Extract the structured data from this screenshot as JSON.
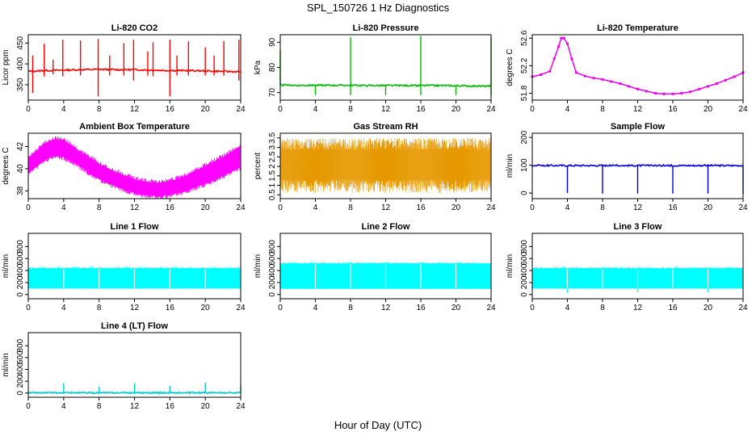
{
  "figure": {
    "title": "SPL_150726  1 Hz Diagnostics",
    "xlabel": "Hour of Day (UTC)"
  },
  "chart_data": [
    {
      "id": "co2",
      "type": "line",
      "title": "Li-820 CO2",
      "ylabel": "Licor ppm",
      "color": "#ff0000",
      "xlim": [
        0,
        24
      ],
      "ylim": [
        313,
        470
      ],
      "xticks": [
        0,
        4,
        8,
        12,
        16,
        20,
        24
      ],
      "yticks": [
        350,
        400,
        450
      ],
      "series": [
        {
          "x": [
            0,
            2,
            4,
            6,
            8,
            10,
            12,
            14,
            16,
            18,
            20,
            22,
            24
          ],
          "y": [
            382,
            384,
            385,
            386,
            387,
            386,
            386,
            385,
            384,
            384,
            383,
            382,
            381
          ]
        }
      ],
      "spikes": [
        {
          "x": 0.5,
          "top": 420,
          "bottom": 330
        },
        {
          "x": 1.8,
          "top": 448,
          "bottom": 370
        },
        {
          "x": 2.8,
          "top": 410,
          "bottom": 375
        },
        {
          "x": 3.9,
          "top": 458,
          "bottom": 370
        },
        {
          "x": 5.9,
          "top": 456,
          "bottom": 372
        },
        {
          "x": 7.9,
          "top": 460,
          "bottom": 322
        },
        {
          "x": 9.2,
          "top": 420,
          "bottom": 372
        },
        {
          "x": 10.8,
          "top": 450,
          "bottom": 372
        },
        {
          "x": 11.9,
          "top": 458,
          "bottom": 360
        },
        {
          "x": 13.5,
          "top": 430,
          "bottom": 372
        },
        {
          "x": 14.1,
          "top": 452,
          "bottom": 370
        },
        {
          "x": 16.0,
          "top": 458,
          "bottom": 322
        },
        {
          "x": 16.8,
          "top": 420,
          "bottom": 372
        },
        {
          "x": 18.1,
          "top": 454,
          "bottom": 372
        },
        {
          "x": 20.0,
          "top": 440,
          "bottom": 372
        },
        {
          "x": 21.0,
          "top": 420,
          "bottom": 372
        },
        {
          "x": 22.1,
          "top": 455,
          "bottom": 372
        },
        {
          "x": 23.8,
          "top": 458,
          "bottom": 360
        }
      ]
    },
    {
      "id": "pressure",
      "type": "line",
      "title": "Li-820 Pressure",
      "ylabel": "kPa",
      "color": "#00bb00",
      "xlim": [
        0,
        24
      ],
      "ylim": [
        67,
        93
      ],
      "xticks": [
        0,
        4,
        8,
        12,
        16,
        20,
        24
      ],
      "yticks": [
        70,
        80,
        90
      ],
      "series": [
        {
          "x": [
            0,
            2,
            4,
            6,
            8,
            10,
            12,
            14,
            16,
            18,
            20,
            22,
            24
          ],
          "y": [
            73.0,
            72.9,
            72.9,
            72.9,
            72.9,
            72.8,
            72.8,
            72.8,
            72.8,
            72.8,
            72.7,
            72.6,
            72.5
          ]
        }
      ],
      "spikes": [
        {
          "x": 0.0,
          "top": 87,
          "bottom": 73
        },
        {
          "x": 4.0,
          "top": 73,
          "bottom": 69
        },
        {
          "x": 8.0,
          "top": 92,
          "bottom": 69
        },
        {
          "x": 12.0,
          "top": 73,
          "bottom": 69
        },
        {
          "x": 16.0,
          "top": 92.5,
          "bottom": 69
        },
        {
          "x": 20.0,
          "top": 73,
          "bottom": 69
        },
        {
          "x": 24.0,
          "top": 92,
          "bottom": 69
        }
      ]
    },
    {
      "id": "licor_temp",
      "type": "line",
      "title": "Li-820 Temperature",
      "ylabel": "degrees C",
      "color": "#ee00ee",
      "xlim": [
        0,
        24
      ],
      "ylim": [
        51.7,
        52.65
      ],
      "xticks": [
        0,
        4,
        8,
        12,
        16,
        20,
        24
      ],
      "yticks": [
        51.8,
        52.2,
        52.6
      ],
      "series": [
        {
          "x": [
            0,
            1,
            2,
            2.5,
            3,
            3.3,
            3.6,
            4,
            4.5,
            5,
            6,
            7,
            8,
            9,
            10,
            11,
            12,
            13,
            14,
            15,
            16,
            17,
            18,
            19,
            20,
            21,
            22,
            23,
            24
          ],
          "y": [
            52.04,
            52.07,
            52.12,
            52.3,
            52.48,
            52.6,
            52.6,
            52.52,
            52.3,
            52.1,
            52.05,
            52.02,
            52.0,
            51.97,
            51.94,
            51.9,
            51.86,
            51.83,
            51.8,
            51.79,
            51.79,
            51.8,
            51.82,
            51.86,
            51.9,
            51.94,
            51.99,
            52.04,
            52.1
          ]
        }
      ]
    },
    {
      "id": "box_temp",
      "type": "area",
      "title": "Ambient Box Temperature",
      "ylabel": "degrees C",
      "color": "#ff00ff",
      "xlim": [
        0,
        24
      ],
      "ylim": [
        37.3,
        43.2
      ],
      "xticks": [
        0,
        4,
        8,
        12,
        16,
        20,
        24
      ],
      "yticks": [
        38,
        40,
        42
      ],
      "series": [
        {
          "x": [
            0,
            1,
            2,
            3,
            4,
            5,
            6,
            7,
            8,
            9,
            10,
            11,
            12,
            13,
            14,
            15,
            16,
            17,
            18,
            19,
            20,
            21,
            22,
            23,
            24
          ],
          "upper": [
            40.8,
            41.6,
            42.3,
            42.6,
            42.5,
            42.0,
            41.4,
            40.9,
            40.4,
            40.0,
            39.6,
            39.3,
            39.0,
            38.8,
            38.7,
            38.7,
            38.8,
            39.1,
            39.4,
            39.8,
            40.2,
            40.6,
            41.0,
            41.5,
            42.0
          ],
          "lower": [
            39.6,
            40.3,
            40.9,
            41.2,
            41.1,
            40.7,
            40.2,
            39.6,
            39.1,
            38.7,
            38.4,
            38.1,
            37.9,
            37.7,
            37.6,
            37.6,
            37.7,
            37.9,
            38.1,
            38.4,
            38.7,
            39.0,
            39.4,
            39.8,
            40.2
          ]
        }
      ]
    },
    {
      "id": "rh",
      "type": "area",
      "title": "Gas Stream RH",
      "ylabel": "percent",
      "color": "#e69900",
      "xlim": [
        0,
        24
      ],
      "ylim": [
        0.3,
        3.75
      ],
      "xticks": [
        0,
        4,
        8,
        12,
        16,
        20,
        24
      ],
      "yticks": [
        0.5,
        1.0,
        1.5,
        2.0,
        2.5,
        3.0,
        3.5
      ],
      "series": [
        {
          "x": [
            0,
            24
          ],
          "center": 2.1,
          "upper": 3.5,
          "lower": 0.6
        }
      ]
    },
    {
      "id": "sample_flow",
      "type": "line",
      "title": "Sample Flow",
      "ylabel": "ml/min",
      "color": "#0000dd",
      "xlim": [
        0,
        24
      ],
      "ylim": [
        -20,
        215
      ],
      "xticks": [
        0,
        4,
        8,
        12,
        16,
        20,
        24
      ],
      "yticks": [
        0,
        100,
        200
      ],
      "series": [
        {
          "x": [
            0,
            24
          ],
          "y": [
            99,
            99
          ]
        }
      ],
      "spikes": [
        {
          "x": 4.0,
          "top": 99,
          "bottom": 0
        },
        {
          "x": 8.0,
          "top": 99,
          "bottom": -2
        },
        {
          "x": 12.0,
          "top": 99,
          "bottom": -2
        },
        {
          "x": 16.0,
          "top": 99,
          "bottom": -2
        },
        {
          "x": 20.0,
          "top": 99,
          "bottom": -2
        },
        {
          "x": 24.0,
          "top": 99,
          "bottom": -2
        }
      ]
    },
    {
      "id": "line1",
      "type": "area",
      "title": "Line 1 Flow",
      "ylabel": "ml/min",
      "color": "#00ffff",
      "xlim": [
        0,
        24
      ],
      "ylim": [
        -70,
        1020
      ],
      "xticks": [
        0,
        4,
        8,
        12,
        16,
        20,
        24
      ],
      "yticks": [
        0,
        200,
        400,
        600,
        800
      ],
      "series": [
        {
          "x": [
            0,
            24
          ],
          "upper": 440,
          "lower": 100
        }
      ],
      "gaps": [
        4,
        8,
        12,
        16,
        20
      ]
    },
    {
      "id": "line2",
      "type": "area",
      "title": "Line 2 Flow",
      "ylabel": "ml/min",
      "color": "#00ffff",
      "xlim": [
        0,
        24
      ],
      "ylim": [
        -70,
        1020
      ],
      "xticks": [
        0,
        4,
        8,
        12,
        16,
        20,
        24
      ],
      "yticks": [
        0,
        200,
        400,
        600,
        800
      ],
      "series": [
        {
          "x": [
            0,
            24
          ],
          "upper": 520,
          "lower": 95
        }
      ],
      "gaps": [
        4,
        8,
        12,
        16,
        20
      ]
    },
    {
      "id": "line3",
      "type": "area",
      "title": "Line 3 Flow",
      "ylabel": "ml/min",
      "color": "#00ffff",
      "xlim": [
        0,
        24
      ],
      "ylim": [
        -70,
        1020
      ],
      "xticks": [
        0,
        4,
        8,
        12,
        16,
        20,
        24
      ],
      "yticks": [
        0,
        200,
        400,
        600,
        800
      ],
      "series": [
        {
          "x": [
            0,
            24
          ],
          "upper": 440,
          "lower": 100
        }
      ],
      "gaps": [
        4,
        8,
        12,
        16,
        20
      ],
      "spikes": [
        {
          "x": 4.0,
          "top": 100,
          "bottom": 30
        },
        {
          "x": 12.0,
          "top": 100,
          "bottom": 40
        },
        {
          "x": 20.0,
          "top": 100,
          "bottom": 40
        }
      ]
    },
    {
      "id": "line4",
      "type": "line",
      "title": "Line 4 (LT) Flow",
      "ylabel": "ml/min",
      "color": "#00cccc",
      "xlim": [
        0,
        24
      ],
      "ylim": [
        -70,
        1020
      ],
      "xticks": [
        0,
        4,
        8,
        12,
        16,
        20,
        24
      ],
      "yticks": [
        0,
        200,
        400,
        600,
        800
      ],
      "series": [
        {
          "x": [
            0,
            24
          ],
          "y": [
            5,
            5
          ]
        }
      ],
      "spikes": [
        {
          "x": 4.0,
          "top": 170,
          "bottom": 5
        },
        {
          "x": 8.0,
          "top": 110,
          "bottom": 5
        },
        {
          "x": 12.0,
          "top": 170,
          "bottom": 5
        },
        {
          "x": 16.0,
          "top": 120,
          "bottom": 5
        },
        {
          "x": 20.0,
          "top": 175,
          "bottom": 5
        },
        {
          "x": 24.0,
          "top": 130,
          "bottom": 5
        }
      ]
    }
  ]
}
